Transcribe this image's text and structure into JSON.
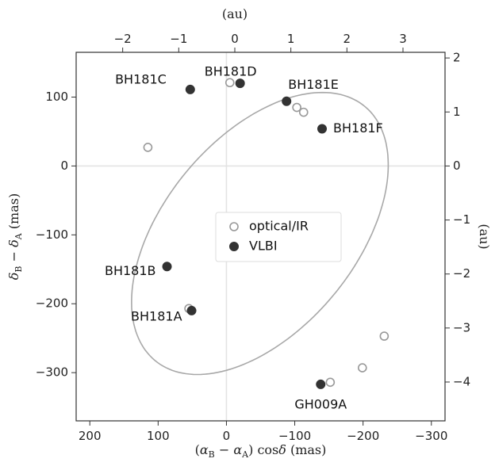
{
  "chart_data": {
    "type": "scatter",
    "xlabel": "(α_B − α_A) cosδ (mas)",
    "ylabel": "δ_B − δ_A (mas)",
    "top_xlabel": "(au)",
    "right_ylabel": "(au)",
    "xlim": [
      220,
      -320
    ],
    "ylim": [
      -370,
      165
    ],
    "x_inverted": true,
    "xticks": [
      200,
      100,
      0,
      -100,
      -200,
      -300
    ],
    "xtick_labels": [
      "200",
      "100",
      "0",
      "−100",
      "−200",
      "−300"
    ],
    "yticks": [
      100,
      0,
      -100,
      -200,
      -300
    ],
    "ytick_labels": [
      "100",
      "0",
      "−100",
      "−200",
      "−300"
    ],
    "top_xticks": [
      -2,
      -1,
      0,
      1,
      2,
      3
    ],
    "top_xtick_labels": [
      "−2",
      "−1",
      "0",
      "1",
      "2",
      "3"
    ],
    "right_yticks": [
      2,
      1,
      0,
      -1,
      -2,
      -3,
      -4
    ],
    "right_ytick_labels": [
      "2",
      "1",
      "0",
      "−1",
      "−2",
      "−3",
      "−4"
    ],
    "grid": false,
    "zero_lines": true,
    "legend_position": "center",
    "orbit_color": "#a8a8a8",
    "series": [
      {
        "name": "optical/IR",
        "marker": "open-circle",
        "color": "#999999",
        "points": [
          {
            "x": 115,
            "y": 27
          },
          {
            "x": -5,
            "y": 121
          },
          {
            "x": -103,
            "y": 85
          },
          {
            "x": -113,
            "y": 78
          },
          {
            "x": 55,
            "y": -207
          },
          {
            "x": -152,
            "y": -314
          },
          {
            "x": -199,
            "y": -293
          },
          {
            "x": -231,
            "y": -247
          }
        ]
      },
      {
        "name": "VLBI",
        "marker": "filled-circle",
        "color": "#333333",
        "points": [
          {
            "x": 53,
            "y": 111,
            "label": "BH181C"
          },
          {
            "x": -20,
            "y": 120,
            "label": "BH181D"
          },
          {
            "x": -88,
            "y": 94,
            "label": "BH181E"
          },
          {
            "x": -140,
            "y": 54,
            "label": "BH181F"
          },
          {
            "x": 87,
            "y": -146,
            "label": "BH181B"
          },
          {
            "x": 51,
            "y": -210,
            "label": "BH181A"
          },
          {
            "x": -138,
            "y": -317,
            "label": "GH009A"
          }
        ]
      }
    ]
  }
}
